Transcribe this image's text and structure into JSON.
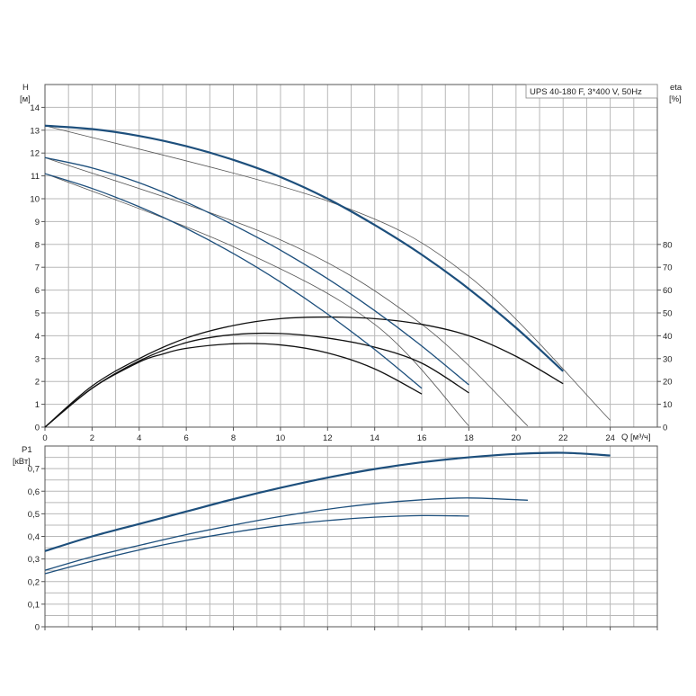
{
  "chart_data": [
    {
      "type": "line",
      "panel": "head-efficiency",
      "title": "UPS 40-180 F, 3*400 V, 50Hz",
      "ylabel_line1": "H",
      "ylabel_line2": "[м]",
      "y2label_line1": "eta",
      "y2label_line2": "[%]",
      "xlabel": "Q [м³/ч]",
      "xlim": [
        0,
        26
      ],
      "ylim": [
        0,
        15
      ],
      "y2lim": [
        0,
        150
      ],
      "grid": true,
      "x_ticks": [
        "0",
        "2",
        "4",
        "6",
        "8",
        "10",
        "12",
        "14",
        "16",
        "18",
        "20",
        "22",
        "24"
      ],
      "y_ticks": [
        "0",
        "1",
        "2",
        "3",
        "4",
        "5",
        "6",
        "7",
        "8",
        "9",
        "10",
        "11",
        "12",
        "13",
        "14"
      ],
      "y2_ticks": [
        "0",
        "10",
        "20",
        "30",
        "40",
        "50",
        "60",
        "70",
        "80"
      ],
      "head_curves": [
        {
          "x": [
            0,
            2,
            4,
            6,
            8,
            10,
            12,
            14,
            16,
            18,
            20,
            22
          ],
          "y": [
            13.2,
            13.05,
            12.75,
            12.3,
            11.7,
            10.95,
            10.0,
            8.85,
            7.55,
            6.05,
            4.35,
            2.45
          ]
        },
        {
          "x": [
            0,
            2,
            4,
            6,
            8,
            10,
            12,
            14,
            16,
            18
          ],
          "y": [
            11.8,
            11.35,
            10.7,
            9.85,
            8.85,
            7.75,
            6.5,
            5.1,
            3.55,
            1.85
          ]
        },
        {
          "x": [
            0,
            2,
            4,
            6,
            8,
            10,
            12,
            14,
            16
          ],
          "y": [
            11.1,
            10.45,
            9.65,
            8.7,
            7.6,
            6.35,
            4.95,
            3.4,
            1.7
          ]
        }
      ],
      "eta_curves": [
        {
          "x": [
            0,
            2,
            4,
            6,
            8,
            10,
            12,
            14,
            16,
            18,
            20,
            22
          ],
          "y": [
            0,
            18,
            30,
            39,
            44.5,
            47.5,
            48.2,
            47.5,
            45,
            40,
            31,
            19
          ]
        },
        {
          "x": [
            0,
            2,
            4,
            6,
            8,
            10,
            12,
            14,
            16,
            18
          ],
          "y": [
            0,
            17,
            29,
            37,
            40.5,
            41,
            39,
            35,
            28,
            15
          ]
        },
        {
          "x": [
            0,
            2,
            4,
            5,
            6,
            8,
            10,
            12,
            14,
            16
          ],
          "y": [
            0,
            17,
            28.5,
            32,
            34.5,
            36.5,
            36,
            32.5,
            25.5,
            14.5
          ]
        }
      ],
      "system_curves": [
        {
          "x": [
            0,
            12,
            18,
            24
          ],
          "y": [
            13.2,
            9.9,
            6.6,
            0.3
          ]
        },
        {
          "x": [
            0,
            10,
            16,
            20.5
          ],
          "y": [
            11.8,
            8.2,
            4.5,
            0.05
          ]
        },
        {
          "x": [
            0,
            8,
            14,
            18
          ],
          "y": [
            11.1,
            7.9,
            4.5,
            0.05
          ]
        }
      ]
    },
    {
      "type": "line",
      "panel": "power",
      "ylabel_line1": "P1",
      "ylabel_line2": "[кВт]",
      "xlim": [
        0,
        26
      ],
      "ylim": [
        0,
        0.8
      ],
      "grid": true,
      "y_ticks": [
        "0",
        "0,1",
        "0,2",
        "0,3",
        "0,4",
        "0,5",
        "0,6",
        "0,7"
      ],
      "power_curves": [
        {
          "x": [
            0,
            2,
            4,
            6,
            8,
            10,
            12,
            14,
            16,
            18,
            20,
            22,
            24
          ],
          "y": [
            0.335,
            0.4,
            0.455,
            0.51,
            0.565,
            0.615,
            0.66,
            0.698,
            0.728,
            0.75,
            0.765,
            0.77,
            0.758
          ]
        },
        {
          "x": [
            0,
            2,
            4,
            6,
            8,
            10,
            12,
            14,
            16,
            18,
            20.5
          ],
          "y": [
            0.25,
            0.31,
            0.36,
            0.408,
            0.45,
            0.488,
            0.52,
            0.545,
            0.562,
            0.57,
            0.56
          ]
        },
        {
          "x": [
            0,
            2,
            4,
            6,
            8,
            10,
            12,
            14,
            16,
            18
          ],
          "y": [
            0.235,
            0.29,
            0.34,
            0.382,
            0.418,
            0.448,
            0.47,
            0.485,
            0.492,
            0.49
          ]
        }
      ]
    }
  ],
  "colors": {
    "head_curve": "#1d4f7c",
    "eta_curve": "#111111",
    "system_curve": "#555555",
    "power_curve": "#1d4f7c"
  }
}
